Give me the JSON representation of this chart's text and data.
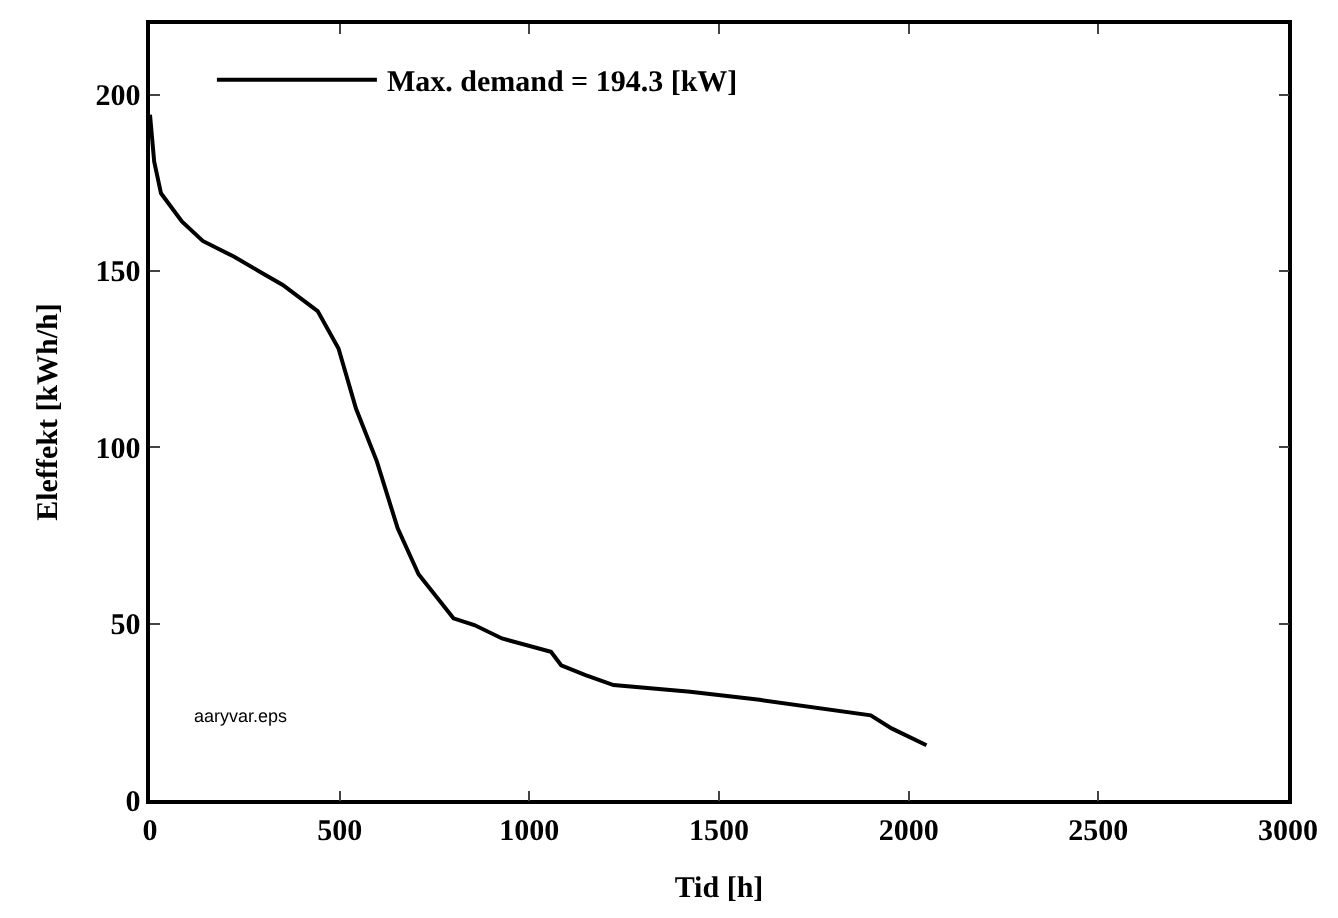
{
  "chart_data": {
    "type": "line",
    "xlabel": "Tid [h]",
    "ylabel": "Eleffekt [kWh/h]",
    "xlim": [
      0,
      3000
    ],
    "ylim": [
      0,
      220
    ],
    "xticks": [
      0,
      500,
      1000,
      1500,
      2000,
      2500,
      3000
    ],
    "yticks": [
      0,
      50,
      100,
      150,
      200
    ],
    "legend": "top",
    "annotations": [
      "aaryvar.eps"
    ],
    "series": [
      {
        "name": "Max. demand = 194.3 [kW]",
        "color": "#000000",
        "x": [
          0,
          11,
          29,
          84,
          139,
          222,
          286,
          350,
          442,
          497,
          543,
          598,
          653,
          708,
          800,
          855,
          928,
          1057,
          1084,
          1148,
          1222,
          1424,
          1607,
          1900,
          1955,
          2047
        ],
        "values": [
          194.3,
          181,
          172,
          164,
          158.5,
          154,
          150,
          146,
          138.6,
          128,
          111,
          96,
          77,
          64,
          51.5,
          49.6,
          45.8,
          42,
          38.2,
          35.4,
          32.6,
          30.7,
          28.4,
          24,
          20.3,
          15.5
        ]
      }
    ]
  }
}
